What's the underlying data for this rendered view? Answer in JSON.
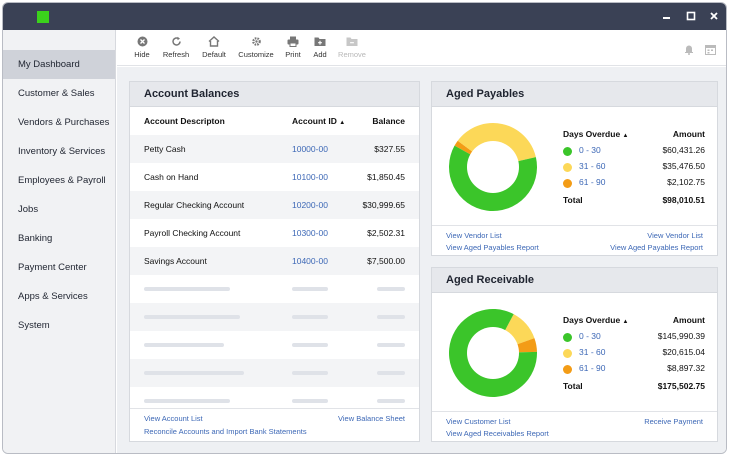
{
  "colors": {
    "green": "#3bc52a",
    "yellow": "#fcd858",
    "orange": "#f39c16",
    "titlebar": "#3a4155",
    "link": "#3d68b6"
  },
  "window": {
    "controls": [
      "minimize-icon",
      "maximize-icon",
      "close-icon"
    ]
  },
  "sidebar": {
    "items": [
      {
        "label": "My Dashboard",
        "active": true
      },
      {
        "label": "Customer & Sales"
      },
      {
        "label": "Vendors & Purchases"
      },
      {
        "label": "Inventory & Services"
      },
      {
        "label": "Employees & Payroll"
      },
      {
        "label": "Jobs"
      },
      {
        "label": "Banking"
      },
      {
        "label": "Payment Center"
      },
      {
        "label": "Apps & Services"
      },
      {
        "label": "System"
      }
    ]
  },
  "toolbar": {
    "buttons": [
      {
        "label": "Hide",
        "icon": "hide-icon"
      },
      {
        "label": "Refresh",
        "icon": "refresh-icon"
      },
      {
        "label": "Default",
        "icon": "home-icon"
      },
      {
        "label": "Customize",
        "icon": "gear-icon"
      },
      {
        "label": "Print",
        "icon": "print-icon"
      },
      {
        "label": "Add",
        "icon": "add-folder-icon"
      },
      {
        "label": "Remove",
        "icon": "remove-folder-icon",
        "disabled": true
      }
    ],
    "right_icons": [
      "bell-icon",
      "calendar-icon"
    ]
  },
  "account_balances": {
    "title": "Account Balances",
    "columns": {
      "desc": "Account Descripton",
      "id": "Account ID",
      "balance": "Balance"
    },
    "sort_indicator": "▲",
    "rows": [
      {
        "desc": "Petty Cash",
        "id": "10000-00",
        "balance": "$327.55"
      },
      {
        "desc": "Cash on Hand",
        "id": "10100-00",
        "balance": "$1,850.45"
      },
      {
        "desc": "Regular Checking Account",
        "id": "10200-00",
        "balance": "$30,999.65"
      },
      {
        "desc": "Payroll Checking Account",
        "id": "10300-00",
        "balance": "$2,502.31"
      },
      {
        "desc": "Savings Account",
        "id": "10400-00",
        "balance": "$7,500.00"
      }
    ],
    "links": {
      "view_list": "View Account List",
      "view_sheet": "View Balance Sheet",
      "reconcile": "Reconcile Accounts and Import Bank Statements"
    }
  },
  "aged_payables": {
    "title": "Aged Payables",
    "columns": {
      "days": "Days Overdue",
      "amount": "Amount"
    },
    "sort_indicator": "▲",
    "rows": [
      {
        "range": "0 - 30",
        "amount": "$60,431.26",
        "color": "#3bc52a"
      },
      {
        "range": "31 - 60",
        "amount": "$35,476.50",
        "color": "#fcd858"
      },
      {
        "range": "61 - 90",
        "amount": "$2,102.75",
        "color": "#f39c16"
      }
    ],
    "total_label": "Total",
    "total": "$98,010.51",
    "donut_values": [
      60431.26,
      35476.5,
      2102.75
    ],
    "links": {
      "vendor_list_left": "View Vendor List",
      "vendor_list_right": "View Vendor List",
      "report_left": "View Aged Payables Report",
      "report_right": "View Aged Payables Report"
    }
  },
  "aged_receivable": {
    "title": "Aged Receivable",
    "columns": {
      "days": "Days Overdue",
      "amount": "Amount"
    },
    "sort_indicator": "▲",
    "rows": [
      {
        "range": "0 - 30",
        "amount": "$145,990.39",
        "color": "#3bc52a"
      },
      {
        "range": "31 - 60",
        "amount": "$20,615.04",
        "color": "#fcd858"
      },
      {
        "range": "61 - 90",
        "amount": "$8,897.32",
        "color": "#f39c16"
      }
    ],
    "total_label": "Total",
    "total": "$175,502.75",
    "donut_values": [
      145990.39,
      20615.04,
      8897.32
    ],
    "links": {
      "customer_list": "View Customer List",
      "receive_payment": "Receive Payment",
      "report": "View Aged Receivables Report"
    }
  }
}
